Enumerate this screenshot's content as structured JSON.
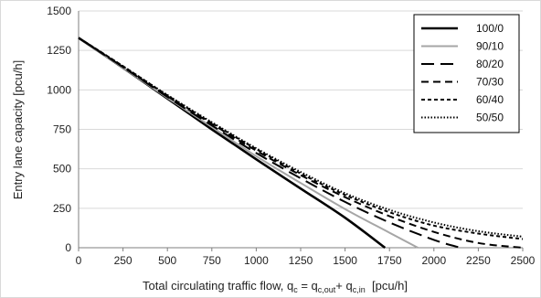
{
  "chart_data": {
    "type": "line",
    "xlabel": "Total circulating traffic flow, q",
    "xlabel_parts": {
      "q": "q",
      "c": "c",
      "eq": " = q",
      "c_out": "c,out",
      "plus": "+ q",
      "c_in": "c,in",
      "unit": "  [pcu/h]"
    },
    "ylabel": "Entry lane capacity [pcu/h]",
    "xlim": [
      0,
      2500
    ],
    "ylim": [
      0,
      1500
    ],
    "x_ticks": [
      "0",
      "250",
      "500",
      "750",
      "1000",
      "1250",
      "1500",
      "1750",
      "2000",
      "2250",
      "2500"
    ],
    "y_ticks": [
      "0",
      "250",
      "500",
      "750",
      "1000",
      "1250",
      "1500"
    ],
    "grid": "horizontal",
    "legend_position": "top-right",
    "series": [
      {
        "name": "100/0",
        "color": "#000000",
        "style": "solid-thick",
        "points": [
          [
            0,
            1330
          ],
          [
            250,
            1140
          ],
          [
            500,
            945
          ],
          [
            750,
            750
          ],
          [
            1000,
            560
          ],
          [
            1250,
            375
          ],
          [
            1500,
            190
          ],
          [
            1725,
            0
          ]
        ]
      },
      {
        "name": "90/10",
        "color": "#a6a6a6",
        "style": "solid",
        "points": [
          [
            0,
            1330
          ],
          [
            250,
            1140
          ],
          [
            500,
            950
          ],
          [
            750,
            765
          ],
          [
            1000,
            580
          ],
          [
            1250,
            410
          ],
          [
            1500,
            245
          ],
          [
            1750,
            95
          ],
          [
            1910,
            0
          ]
        ]
      },
      {
        "name": "80/20",
        "color": "#000000",
        "style": "long-dash",
        "points": [
          [
            0,
            1330
          ],
          [
            250,
            1145
          ],
          [
            500,
            955
          ],
          [
            750,
            775
          ],
          [
            1000,
            600
          ],
          [
            1250,
            440
          ],
          [
            1500,
            290
          ],
          [
            1750,
            160
          ],
          [
            2000,
            50
          ],
          [
            2150,
            0
          ]
        ]
      },
      {
        "name": "70/30",
        "color": "#000000",
        "style": "dash",
        "points": [
          [
            0,
            1330
          ],
          [
            250,
            1145
          ],
          [
            500,
            960
          ],
          [
            750,
            785
          ],
          [
            1000,
            615
          ],
          [
            1250,
            460
          ],
          [
            1500,
            320
          ],
          [
            1750,
            200
          ],
          [
            2000,
            100
          ],
          [
            2250,
            30
          ],
          [
            2500,
            0
          ]
        ]
      },
      {
        "name": "60/40",
        "color": "#000000",
        "style": "short-dash",
        "points": [
          [
            0,
            1330
          ],
          [
            250,
            1150
          ],
          [
            500,
            965
          ],
          [
            750,
            790
          ],
          [
            1000,
            625
          ],
          [
            1250,
            470
          ],
          [
            1500,
            335
          ],
          [
            1750,
            225
          ],
          [
            2000,
            140
          ],
          [
            2250,
            90
          ],
          [
            2500,
            55
          ]
        ]
      },
      {
        "name": "50/50",
        "color": "#000000",
        "style": "dotted",
        "points": [
          [
            0,
            1330
          ],
          [
            250,
            1150
          ],
          [
            500,
            968
          ],
          [
            750,
            795
          ],
          [
            1000,
            630
          ],
          [
            1250,
            480
          ],
          [
            1500,
            345
          ],
          [
            1750,
            240
          ],
          [
            2000,
            160
          ],
          [
            2250,
            105
          ],
          [
            2500,
            70
          ]
        ]
      }
    ]
  }
}
